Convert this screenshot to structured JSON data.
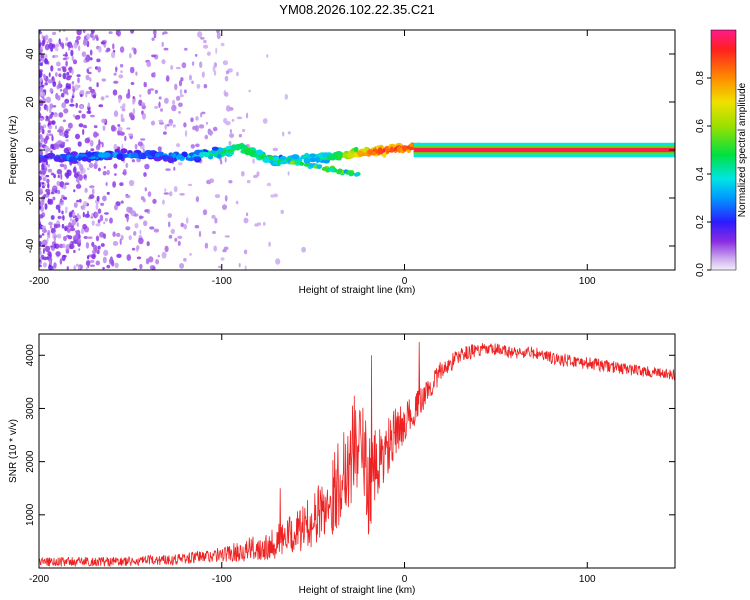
{
  "title": "YM08.2026.102.22.35.C21",
  "chart_data": [
    {
      "type": "heatmap",
      "name": "spectrogram",
      "xlabel": "Height of straight line (km)",
      "ylabel": "Frequency (Hz)",
      "xlim": [
        -200,
        148
      ],
      "ylim": [
        -50,
        50
      ],
      "xticks": [
        -200,
        -100,
        0,
        100
      ],
      "xtick_labels": [
        "-200",
        "-100",
        "0",
        "100"
      ],
      "yticks": [
        -40,
        -20,
        0,
        20,
        40
      ],
      "ytick_labels": [
        "-40",
        "-20",
        "0",
        "20",
        "40"
      ],
      "trace": {
        "x": [
          -200,
          -180,
          -160,
          -140,
          -120,
          -100,
          -90,
          -80,
          -70,
          -60,
          -50,
          -40,
          -30,
          -20,
          -10,
          0,
          10
        ],
        "freq": [
          -3,
          -3,
          -2,
          -2,
          -3,
          -1,
          1,
          -2,
          -5,
          -4,
          -3,
          -3,
          -2,
          -1,
          0,
          1,
          1
        ],
        "amplitude": [
          0.25,
          0.3,
          0.3,
          0.3,
          0.35,
          0.5,
          0.55,
          0.5,
          0.45,
          0.45,
          0.45,
          0.5,
          0.7,
          0.85,
          0.9,
          0.9,
          0.95
        ]
      },
      "tone": {
        "x_start": 5,
        "x_end": 148,
        "freq": 0,
        "amplitude": 0.95
      },
      "colorbar": {
        "label": "Normalized spectral amplitude",
        "range": [
          0,
          1
        ],
        "ticks": [
          0.0,
          0.2,
          0.4,
          0.6,
          0.8
        ],
        "tick_labels": [
          "0.0",
          "0.2",
          "0.4",
          "0.6",
          "0.8"
        ]
      }
    },
    {
      "type": "line",
      "name": "snr",
      "xlabel": "Height of straight line (km)",
      "ylabel": "SNR (10 * v/v)",
      "xlim": [
        -200,
        148
      ],
      "ylim": [
        0,
        4400
      ],
      "xticks": [
        -200,
        -100,
        0,
        100
      ],
      "xtick_labels": [
        "-200",
        "-100",
        "0",
        "100"
      ],
      "yticks": [
        1000,
        2000,
        3000,
        4000
      ],
      "ytick_labels": [
        "1000",
        "2000",
        "3000",
        "4000"
      ],
      "color": "#ee2222",
      "series": [
        {
          "name": "SNR",
          "x": [
            -200,
            -150,
            -120,
            -100,
            -80,
            -70,
            -60,
            -50,
            -40,
            -35,
            -30,
            -25,
            -20,
            -15,
            -10,
            -5,
            0,
            5,
            10,
            20,
            30,
            40,
            50,
            60,
            70,
            80,
            100,
            120,
            148
          ],
          "envelope_mean": [
            120,
            120,
            180,
            250,
            380,
            500,
            650,
            900,
            1300,
            1700,
            2100,
            2500,
            1600,
            1900,
            2200,
            2500,
            2750,
            2950,
            3200,
            3700,
            4000,
            4100,
            4100,
            4050,
            4050,
            3950,
            3850,
            3750,
            3620
          ],
          "noise_amplitude": [
            90,
            90,
            110,
            140,
            250,
            320,
            380,
            500,
            700,
            900,
            1000,
            1000,
            1000,
            700,
            600,
            500,
            350,
            300,
            250,
            200,
            150,
            130,
            130,
            120,
            120,
            120,
            120,
            110,
            100
          ],
          "spikes": [
            {
              "x": -18,
              "y": 4000
            },
            {
              "x": 8,
              "y": 4250
            },
            {
              "x": -68,
              "y": 1500
            }
          ]
        }
      ]
    }
  ]
}
